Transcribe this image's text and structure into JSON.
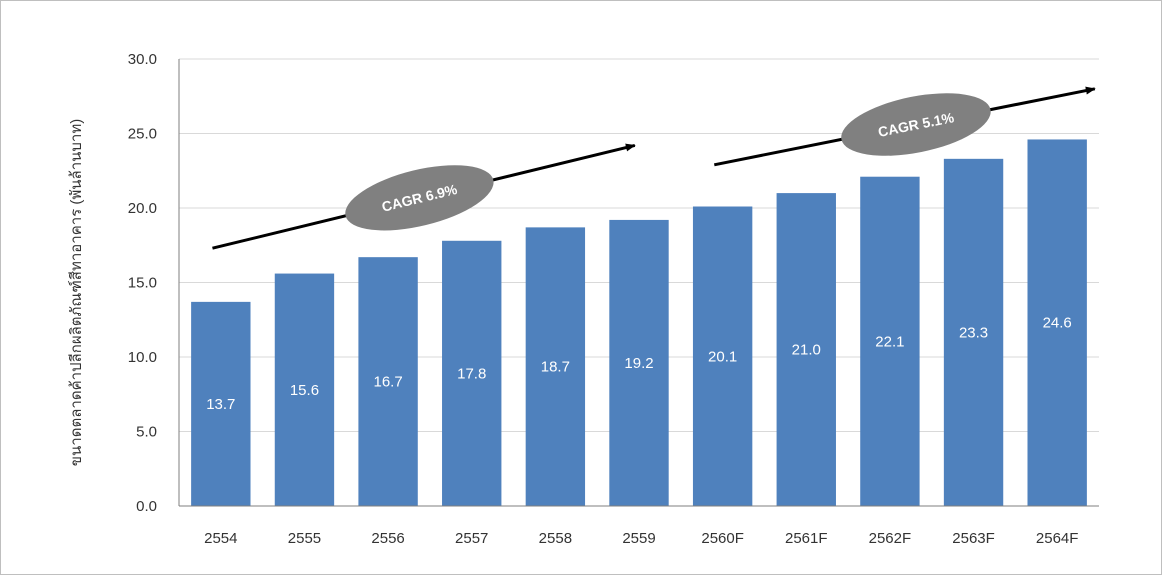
{
  "chart_data": {
    "type": "bar",
    "title": "",
    "xlabel": "",
    "ylabel": "ขนาดตลาดค้าปลีกผลิตภัณฑ์สีทาอาคาร (พันล้านบาท)",
    "categories": [
      "2554",
      "2555",
      "2556",
      "2557",
      "2558",
      "2559",
      "2560F",
      "2561F",
      "2562F",
      "2563F",
      "2564F"
    ],
    "values": [
      13.7,
      15.6,
      16.7,
      17.8,
      18.7,
      19.2,
      20.1,
      21.0,
      22.1,
      23.3,
      24.6
    ],
    "value_labels": [
      "13.7",
      "15.6",
      "16.7",
      "17.8",
      "18.7",
      "19.2",
      "20.1",
      "21.0",
      "22.1",
      "23.3",
      "24.6"
    ],
    "ylim": [
      0,
      30
    ],
    "yticks": [
      "0.0",
      "5.0",
      "10.0",
      "15.0",
      "20.0",
      "25.0",
      "30.0"
    ],
    "grid": true,
    "bar_color": "#4f81bd",
    "annotations": [
      {
        "label": "CAGR 6.9%",
        "from_category": "2554",
        "to_category": "2559"
      },
      {
        "label": "CAGR 5.1%",
        "from_category": "2560F",
        "to_category": "2564F"
      }
    ]
  }
}
